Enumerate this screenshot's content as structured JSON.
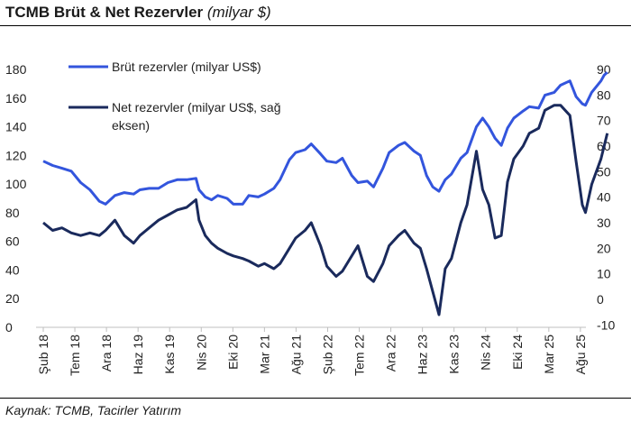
{
  "title_main": "TCMB Brüt & Net Rezervler",
  "title_unit": "(milyar $)",
  "source": "Kaynak: TCMB, Tacirler Yatırım",
  "chart_data": {
    "type": "line",
    "x_labels": [
      "Şub 18",
      "Tem 18",
      "Ara 18",
      "Haz 19",
      "Kas 19",
      "Nis 20",
      "Eki 20",
      "Mar 21",
      "Ağu 21",
      "Şub 22",
      "Tem 22",
      "Ara 22",
      "Haz 23",
      "Kas 23",
      "Nis 24",
      "Eki 24",
      "Mar 25",
      "Ağu 25"
    ],
    "y_left": {
      "ticks": [
        0,
        20,
        40,
        60,
        80,
        100,
        120,
        140,
        160,
        180
      ],
      "range": [
        0,
        190
      ]
    },
    "y_right": {
      "ticks": [
        -10,
        0,
        10,
        20,
        30,
        40,
        50,
        60,
        70,
        80,
        90
      ],
      "range": [
        -10,
        90
      ]
    },
    "x_range": [
      0,
      17.3
    ],
    "series": [
      {
        "name": "Brüt rezervler (milyar US$)",
        "axis": "left",
        "color": "#3355dd",
        "points": [
          [
            0,
            116
          ],
          [
            0.3,
            113
          ],
          [
            0.6,
            111
          ],
          [
            0.9,
            109
          ],
          [
            1.2,
            101
          ],
          [
            1.5,
            96
          ],
          [
            1.8,
            88
          ],
          [
            2.0,
            86
          ],
          [
            2.3,
            92
          ],
          [
            2.6,
            94
          ],
          [
            2.9,
            93
          ],
          [
            3.1,
            96
          ],
          [
            3.4,
            97
          ],
          [
            3.7,
            97
          ],
          [
            4.0,
            101
          ],
          [
            4.3,
            103
          ],
          [
            4.6,
            103
          ],
          [
            4.9,
            104
          ],
          [
            5.0,
            96
          ],
          [
            5.2,
            91
          ],
          [
            5.4,
            89
          ],
          [
            5.6,
            92
          ],
          [
            5.9,
            90
          ],
          [
            6.1,
            86
          ],
          [
            6.4,
            86
          ],
          [
            6.6,
            92
          ],
          [
            6.9,
            91
          ],
          [
            7.1,
            93
          ],
          [
            7.4,
            97
          ],
          [
            7.6,
            103
          ],
          [
            7.9,
            117
          ],
          [
            8.1,
            122
          ],
          [
            8.4,
            124
          ],
          [
            8.6,
            128
          ],
          [
            8.9,
            121
          ],
          [
            9.1,
            116
          ],
          [
            9.4,
            115
          ],
          [
            9.6,
            118
          ],
          [
            9.9,
            106
          ],
          [
            10.1,
            101
          ],
          [
            10.4,
            102
          ],
          [
            10.6,
            98
          ],
          [
            10.9,
            111
          ],
          [
            11.1,
            122
          ],
          [
            11.4,
            127
          ],
          [
            11.6,
            129
          ],
          [
            11.9,
            123
          ],
          [
            12.1,
            120
          ],
          [
            12.3,
            106
          ],
          [
            12.5,
            98
          ],
          [
            12.7,
            95
          ],
          [
            12.9,
            103
          ],
          [
            13.1,
            107
          ],
          [
            13.4,
            118
          ],
          [
            13.6,
            122
          ],
          [
            13.9,
            140
          ],
          [
            14.1,
            146
          ],
          [
            14.3,
            140
          ],
          [
            14.5,
            132
          ],
          [
            14.7,
            127
          ],
          [
            14.9,
            139
          ],
          [
            15.1,
            146
          ],
          [
            15.4,
            151
          ],
          [
            15.6,
            154
          ],
          [
            15.9,
            153
          ],
          [
            16.1,
            162
          ],
          [
            16.4,
            164
          ],
          [
            16.6,
            169
          ],
          [
            16.9,
            172
          ],
          [
            17.1,
            161
          ],
          [
            17.3,
            156
          ],
          [
            17.4,
            155
          ],
          [
            17.6,
            164
          ],
          [
            17.9,
            172
          ],
          [
            18.0,
            176
          ],
          [
            18.1,
            178
          ]
        ]
      },
      {
        "name": "Net rezervler (milyar US$, sağ eksen)",
        "axis": "right",
        "color": "#1a2a5c",
        "points": [
          [
            0,
            30
          ],
          [
            0.3,
            27
          ],
          [
            0.6,
            28
          ],
          [
            0.9,
            26
          ],
          [
            1.2,
            25
          ],
          [
            1.5,
            26
          ],
          [
            1.8,
            25
          ],
          [
            2.0,
            27
          ],
          [
            2.3,
            31
          ],
          [
            2.6,
            25
          ],
          [
            2.9,
            22
          ],
          [
            3.1,
            25
          ],
          [
            3.4,
            28
          ],
          [
            3.7,
            31
          ],
          [
            4.0,
            33
          ],
          [
            4.3,
            35
          ],
          [
            4.6,
            36
          ],
          [
            4.9,
            39
          ],
          [
            5.0,
            31
          ],
          [
            5.2,
            25
          ],
          [
            5.4,
            22
          ],
          [
            5.6,
            20
          ],
          [
            5.9,
            18
          ],
          [
            6.1,
            17
          ],
          [
            6.4,
            16
          ],
          [
            6.6,
            15
          ],
          [
            6.9,
            13
          ],
          [
            7.1,
            14
          ],
          [
            7.4,
            12
          ],
          [
            7.6,
            14
          ],
          [
            7.9,
            20
          ],
          [
            8.1,
            24
          ],
          [
            8.4,
            27
          ],
          [
            8.6,
            30
          ],
          [
            8.9,
            21
          ],
          [
            9.1,
            13
          ],
          [
            9.4,
            9
          ],
          [
            9.6,
            11
          ],
          [
            9.9,
            17
          ],
          [
            10.1,
            21
          ],
          [
            10.4,
            9
          ],
          [
            10.6,
            7
          ],
          [
            10.9,
            14
          ],
          [
            11.1,
            21
          ],
          [
            11.4,
            25
          ],
          [
            11.6,
            27
          ],
          [
            11.9,
            22
          ],
          [
            12.1,
            20
          ],
          [
            12.3,
            12
          ],
          [
            12.5,
            3
          ],
          [
            12.7,
            -6
          ],
          [
            12.9,
            12
          ],
          [
            13.1,
            16
          ],
          [
            13.4,
            30
          ],
          [
            13.6,
            37
          ],
          [
            13.9,
            58
          ],
          [
            14.1,
            43
          ],
          [
            14.3,
            37
          ],
          [
            14.5,
            24
          ],
          [
            14.7,
            25
          ],
          [
            14.9,
            46
          ],
          [
            15.1,
            55
          ],
          [
            15.4,
            60
          ],
          [
            15.6,
            65
          ],
          [
            15.9,
            67
          ],
          [
            16.1,
            74
          ],
          [
            16.4,
            76
          ],
          [
            16.6,
            76
          ],
          [
            16.9,
            72
          ],
          [
            17.1,
            54
          ],
          [
            17.3,
            37
          ],
          [
            17.4,
            34
          ],
          [
            17.6,
            45
          ],
          [
            17.9,
            55
          ],
          [
            18.0,
            60
          ],
          [
            18.1,
            65
          ]
        ]
      }
    ]
  }
}
